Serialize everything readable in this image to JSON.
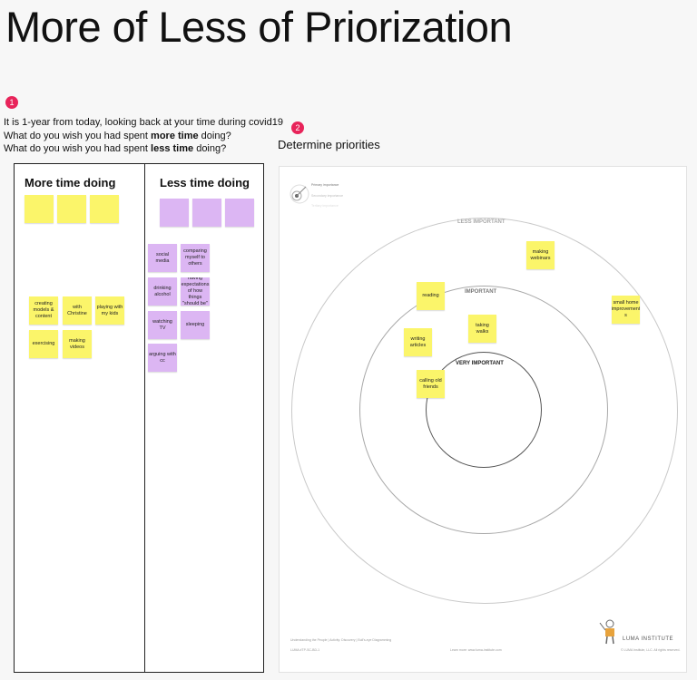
{
  "title": "More of Less of Priorization",
  "step1": {
    "number": "1",
    "line1": "It is 1-year from today, looking back at your time during covid19",
    "line2_prefix": "What do you wish you had spent ",
    "line2_bold": "more time",
    "line2_suffix": " doing?",
    "line3_prefix": "What do you wish you had spent ",
    "line3_bold": "less time",
    "line3_suffix": " doing?"
  },
  "step2": {
    "number": "2",
    "title": "Determine priorities"
  },
  "board": {
    "more_heading": "More time doing",
    "less_heading": "Less time doing",
    "more_notes": [
      "creating models & content",
      "with Christine",
      "playing with my kids",
      "exercising",
      "making videos"
    ],
    "less_notes": [
      "social media",
      "comparing myself to others",
      "drinking alcohol",
      "having expectations of how things \"should be\"",
      "watching TV",
      "sleeping",
      "arguing with cc"
    ]
  },
  "bullseye": {
    "rings": [
      "LESS IMPORTANT",
      "IMPORTANT",
      "VERY IMPORTANT"
    ],
    "legend": [
      "Primary importance",
      "Secondary importance",
      "Tertiary importance"
    ],
    "notes": [
      "making webinars",
      "reading",
      "small home improvement s",
      "taking walks",
      "writing articles",
      "calling old friends"
    ],
    "footer_left": "Understanding the People | Activity: Discovery | Bull's-eye Diagramming",
    "footer_left2": "LUMA #TP-SC-BD-1",
    "footer_center": "Learn more: www.luma-institute.com",
    "footer_right": "© LUMA Institute, LLC. All rights reserved.",
    "logo": "LUMA INSTITUTE"
  },
  "colors": {
    "sticky_yellow": "#fbf56a",
    "sticky_purple": "#dcb6f3",
    "step_badge": "#e8245a"
  }
}
